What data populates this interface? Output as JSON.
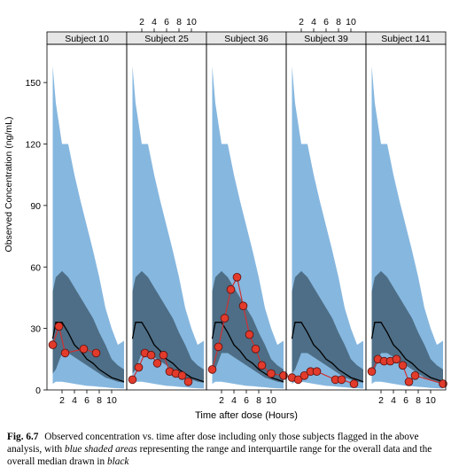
{
  "chart_data": {
    "type": "line",
    "ylabel": "Observed Concentration (ng/mL)",
    "xlabel": "Time after dose (Hours)",
    "ylim": [
      0,
      160
    ],
    "xlim": [
      0,
      12
    ],
    "y_ticks": [
      0,
      30,
      60,
      90,
      120,
      150
    ],
    "x_ticks": [
      2,
      4,
      6,
      8,
      10
    ],
    "colors": {
      "range": "#86b7df",
      "iqr": "#4d6e86",
      "median": "#000000",
      "observed_line": "#d03030",
      "observed_point": "#e23b2b"
    },
    "panels": [
      {
        "title": "Subject 10",
        "observed": [
          [
            0.5,
            22
          ],
          [
            1.5,
            31
          ],
          [
            2.5,
            18
          ],
          [
            5.5,
            20
          ],
          [
            7.5,
            18
          ]
        ]
      },
      {
        "title": "Subject 25",
        "observed": [
          [
            0.5,
            5
          ],
          [
            1.5,
            11
          ],
          [
            2.5,
            18
          ],
          [
            3.5,
            17
          ],
          [
            4.5,
            13
          ],
          [
            5.5,
            17
          ],
          [
            6.5,
            9
          ],
          [
            7.5,
            8
          ],
          [
            8.5,
            7
          ],
          [
            9.5,
            4
          ]
        ]
      },
      {
        "title": "Subject 36",
        "observed": [
          [
            0.5,
            10
          ],
          [
            1.5,
            21
          ],
          [
            2.5,
            35
          ],
          [
            3.5,
            49
          ],
          [
            4.5,
            55
          ],
          [
            5.5,
            41
          ],
          [
            6.5,
            27
          ],
          [
            7.5,
            20
          ],
          [
            8.5,
            12
          ],
          [
            10.0,
            8
          ],
          [
            12.0,
            7
          ]
        ]
      },
      {
        "title": "Subject 39",
        "observed": [
          [
            0.5,
            6
          ],
          [
            1.5,
            5
          ],
          [
            2.5,
            7
          ],
          [
            3.5,
            9
          ],
          [
            4.5,
            9
          ],
          [
            7.5,
            5
          ],
          [
            8.5,
            5
          ],
          [
            10.5,
            3
          ]
        ]
      },
      {
        "title": "Subject 141",
        "observed": [
          [
            0.5,
            9
          ],
          [
            1.5,
            15
          ],
          [
            2.5,
            14
          ],
          [
            3.5,
            14
          ],
          [
            4.5,
            15
          ],
          [
            5.5,
            12
          ],
          [
            6.5,
            4
          ],
          [
            7.5,
            7
          ],
          [
            12.0,
            3
          ]
        ]
      }
    ],
    "reference": {
      "x": [
        0.5,
        1,
        2,
        3,
        4,
        5,
        6,
        7,
        8,
        9,
        10,
        11,
        12
      ],
      "range_lo": [
        3,
        4,
        4,
        3.5,
        3,
        2.5,
        2,
        1.8,
        1.5,
        1.3,
        1,
        0.8,
        0.7
      ],
      "range_hi": [
        158,
        140,
        120,
        120,
        105,
        92,
        80,
        68,
        55,
        40,
        30,
        22,
        24
      ],
      "iqr_lo": [
        8,
        10,
        18,
        18,
        16,
        14,
        12,
        10,
        8,
        6,
        5,
        4,
        3.5
      ],
      "iqr_hi": [
        48,
        55,
        58,
        55,
        50,
        45,
        40,
        35,
        28,
        22,
        15,
        12,
        10
      ],
      "median": [
        25,
        33,
        33,
        28,
        22,
        19,
        15,
        13,
        10,
        8,
        6,
        5,
        4
      ]
    }
  },
  "caption": {
    "label": "Fig. 6.7",
    "part1": "Observed concentration vs. time after dose including only those subjects flagged in the above analysis, with",
    "italic1": "blue shaded areas",
    "part2": "representing the range and interquartile range for the overall data and the overall median drawn in",
    "italic2": "black"
  }
}
